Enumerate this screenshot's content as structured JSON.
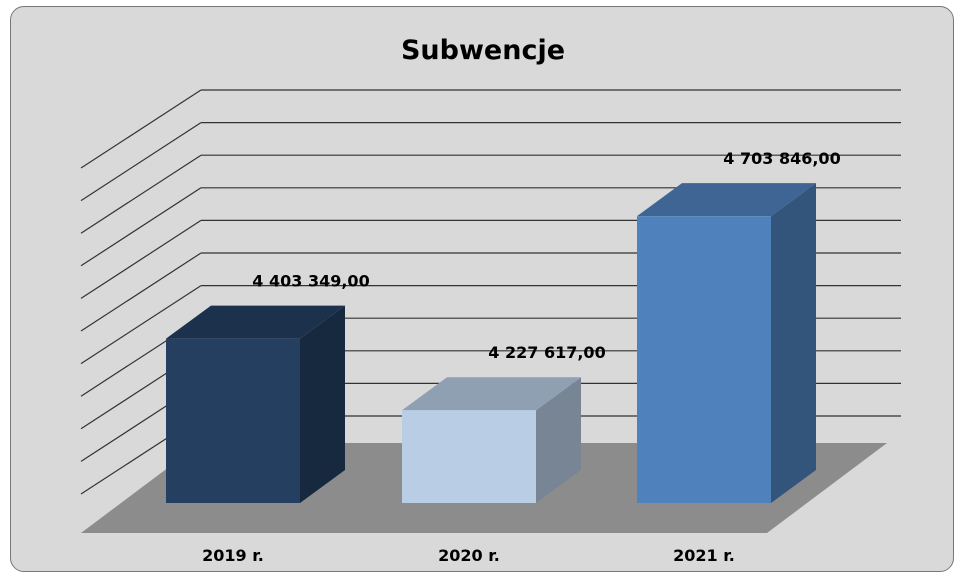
{
  "chart_data": {
    "type": "bar",
    "title": "Subwencje",
    "categories": [
      "2019 r.",
      "2020 r.",
      "2021 r."
    ],
    "values": [
      4403349.0,
      4227617.0,
      4703846.0
    ],
    "value_labels": [
      "4 403 349,00",
      "4 227 617,00",
      "4 703 846,00"
    ],
    "colors": [
      "#243f60",
      "#b9cde5",
      "#4f81bd"
    ],
    "ylim": [
      4000000,
      4800000
    ],
    "grid": true,
    "legend": "none",
    "style": "3d-column"
  }
}
